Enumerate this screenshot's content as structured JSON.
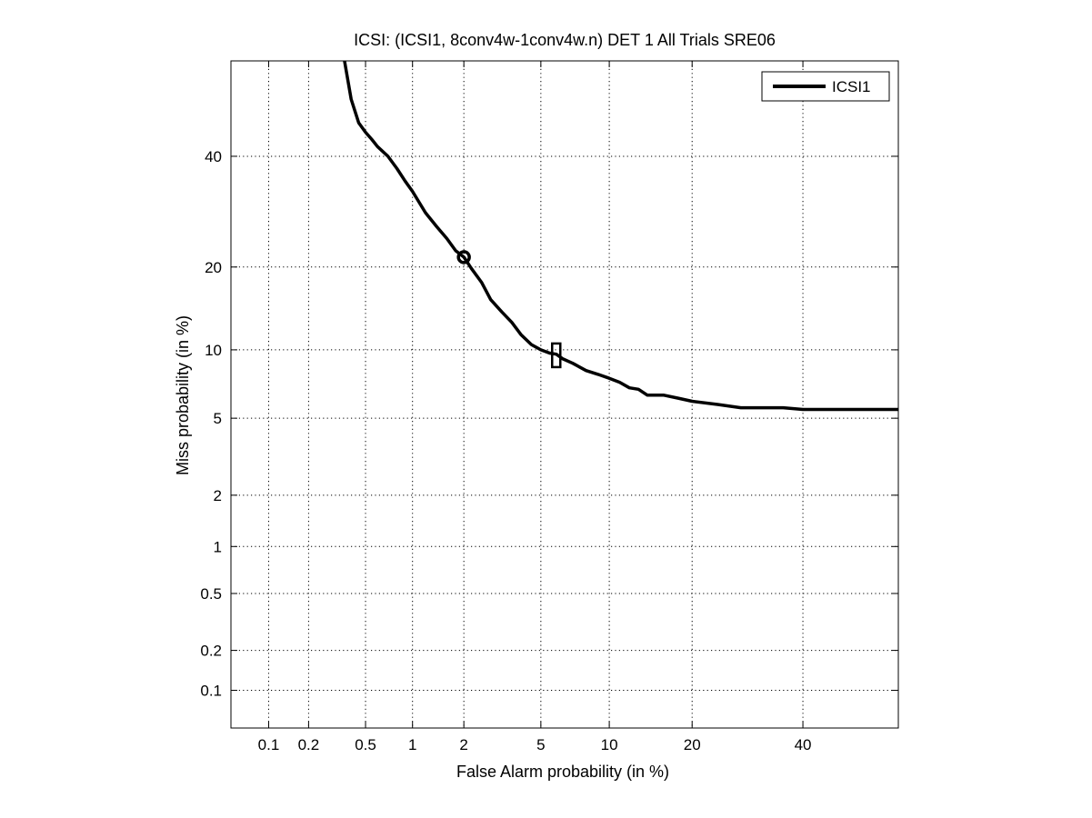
{
  "chart_data": {
    "type": "line",
    "scale": "normal-deviate (DET)",
    "title": "ICSI: (ICSI1, 8conv4w-1conv4w.n) DET 1 All Trials SRE06",
    "xlabel": "False Alarm probability (in %)",
    "ylabel": "Miss probability (in %)",
    "xlim": [
      0.05,
      60
    ],
    "ylim": [
      0.05,
      60
    ],
    "xticks": [
      0.1,
      0.2,
      0.5,
      1,
      2,
      5,
      10,
      20,
      40
    ],
    "xtick_labels": [
      "0.1",
      "0.2",
      "0.5",
      "1",
      "2",
      "5",
      "10",
      "20",
      "40"
    ],
    "yticks": [
      0.1,
      0.2,
      0.5,
      1,
      2,
      5,
      10,
      20,
      40
    ],
    "ytick_labels": [
      "0.1",
      "0.2",
      "0.5",
      "1",
      "2",
      "5",
      "10",
      "20",
      "40"
    ],
    "grid": true,
    "legend_position": "top-right",
    "series": [
      {
        "name": "ICSI1",
        "color": "#000000",
        "x": [
          0.36,
          0.4,
          0.45,
          0.5,
          0.55,
          0.6,
          0.7,
          0.8,
          0.9,
          1.0,
          1.2,
          1.4,
          1.6,
          1.8,
          2.0,
          2.2,
          2.5,
          2.8,
          3.2,
          3.6,
          4.0,
          4.5,
          5.0,
          5.5,
          5.9,
          6.3,
          7.0,
          8.0,
          9.0,
          10.0,
          11.0,
          12.0,
          13.0,
          14.0,
          16.0,
          18.0,
          20.0,
          24.0,
          28.0,
          32.0,
          36.0,
          40.0,
          48.0,
          60.0
        ],
        "y": [
          60.0,
          52.0,
          47.0,
          45.0,
          43.5,
          42.0,
          40.0,
          37.5,
          35.0,
          33.0,
          29.0,
          26.5,
          24.5,
          22.5,
          21.5,
          19.8,
          17.8,
          15.5,
          14.0,
          12.8,
          11.5,
          10.5,
          10.0,
          9.7,
          9.6,
          9.2,
          8.8,
          8.2,
          7.9,
          7.6,
          7.3,
          6.9,
          6.8,
          6.4,
          6.4,
          6.2,
          6.0,
          5.8,
          5.6,
          5.6,
          5.6,
          5.5,
          5.5,
          5.5
        ]
      }
    ],
    "markers": [
      {
        "shape": "circle",
        "x": 2.0,
        "y": 21.5
      },
      {
        "shape": "square",
        "x": 5.9,
        "y": 9.5
      }
    ]
  }
}
